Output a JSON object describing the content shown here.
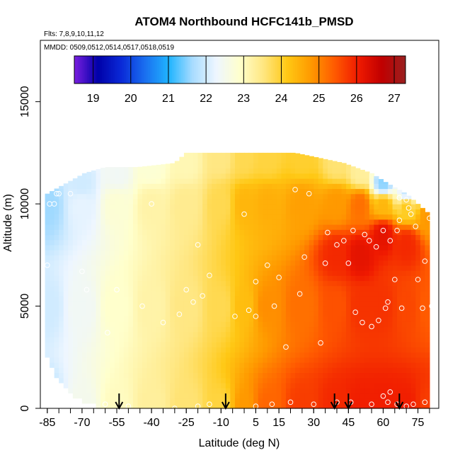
{
  "chart_data": {
    "type": "heatmap",
    "title": "ATOM4 Northbound HCFC141b_PMSD",
    "subtitle_flights": "Flts: 7,8,9,10,11,12",
    "subtitle_dates": "MMDD: 0509,0512,0514,0517,0518,0519",
    "xlabel": "Latitude (deg N)",
    "ylabel": "Altitude (m)",
    "xlim": [
      -88,
      84
    ],
    "ylim": [
      0,
      18000
    ],
    "x_ticks": [
      "-85",
      "-70",
      "-55",
      "-40",
      "-25",
      "-10",
      "5",
      "15",
      "30",
      "45",
      "60",
      "75"
    ],
    "x_tick_values": [
      -85,
      -70,
      -55,
      -40,
      -25,
      -10,
      5,
      15,
      30,
      45,
      60,
      75
    ],
    "y_ticks": [
      "0",
      "5000",
      "10000",
      "15000"
    ],
    "y_tick_values": [
      0,
      5000,
      10000,
      15000
    ],
    "colorbar": {
      "min": 18.5,
      "max": 27.3,
      "labels": [
        "19",
        "20",
        "21",
        "22",
        "23",
        "24",
        "25",
        "26",
        "27"
      ],
      "values": [
        19,
        20,
        21,
        22,
        23,
        24,
        25,
        26,
        27
      ],
      "colors": [
        "#7a1fe0",
        "#0000a8",
        "#0a2ad8",
        "#1a70f0",
        "#20b4ff",
        "#a8dcff",
        "#eef6ff",
        "#ffffcc",
        "#ffe680",
        "#ffc814",
        "#ff9a00",
        "#ff5a00",
        "#f01a00",
        "#c00000",
        "#9a2020"
      ]
    },
    "arrows_lat": [
      -54,
      -8,
      39,
      45,
      67
    ],
    "field": {
      "top_altitude_by_lat": [
        [
          -85,
          10500
        ],
        [
          -77,
          11000
        ],
        [
          -69,
          11500
        ],
        [
          -60,
          11800
        ],
        [
          -46,
          11800
        ],
        [
          -30,
          12000
        ],
        [
          -25,
          12500
        ],
        [
          22,
          12500
        ],
        [
          43,
          12000
        ],
        [
          55,
          11500
        ],
        [
          62,
          11000
        ],
        [
          70,
          10500
        ],
        [
          75,
          10000
        ],
        [
          80,
          9500
        ]
      ],
      "left_bottom_altitude_by_lat": [
        [
          -85,
          2500
        ],
        [
          -80,
          1500
        ],
        [
          -75,
          800
        ],
        [
          -68,
          400
        ],
        [
          -60,
          0
        ]
      ],
      "left_edge_lat": -86,
      "right_edge_lat": 80,
      "anchor_values": [
        [
          -85,
          0,
          21.8
        ],
        [
          -85,
          5000,
          22.0
        ],
        [
          -85,
          10000,
          21.6
        ],
        [
          -70,
          0,
          22.5
        ],
        [
          -70,
          5000,
          22.4
        ],
        [
          -70,
          10000,
          22.2
        ],
        [
          -70,
          11000,
          22.0
        ],
        [
          -55,
          0,
          23.0
        ],
        [
          -55,
          5000,
          22.9
        ],
        [
          -55,
          10000,
          22.8
        ],
        [
          -55,
          11500,
          22.4
        ],
        [
          -40,
          0,
          23.3
        ],
        [
          -40,
          5000,
          23.2
        ],
        [
          -40,
          10000,
          23.2
        ],
        [
          -40,
          11800,
          22.8
        ],
        [
          -25,
          0,
          23.6
        ],
        [
          -25,
          5000,
          23.5
        ],
        [
          -25,
          10000,
          23.4
        ],
        [
          -25,
          12000,
          23.1
        ],
        [
          -10,
          0,
          23.9
        ],
        [
          -10,
          5000,
          23.8
        ],
        [
          -10,
          10000,
          23.8
        ],
        [
          -10,
          12300,
          23.5
        ],
        [
          0,
          0,
          24.8
        ],
        [
          0,
          5000,
          24.3
        ],
        [
          0,
          10000,
          24.4
        ],
        [
          0,
          12300,
          23.8
        ],
        [
          10,
          0,
          25.3
        ],
        [
          10,
          5000,
          24.9
        ],
        [
          10,
          10000,
          24.5
        ],
        [
          10,
          12300,
          23.9
        ],
        [
          25,
          0,
          25.7
        ],
        [
          25,
          5000,
          25.2
        ],
        [
          25,
          10000,
          24.7
        ],
        [
          25,
          12300,
          24.0
        ],
        [
          40,
          0,
          25.9
        ],
        [
          40,
          5000,
          25.5
        ],
        [
          40,
          7500,
          25.9
        ],
        [
          40,
          10000,
          24.8
        ],
        [
          40,
          12000,
          23.6
        ],
        [
          50,
          0,
          26.0
        ],
        [
          50,
          5000,
          25.8
        ],
        [
          50,
          7500,
          26.2
        ],
        [
          50,
          10000,
          25.2
        ],
        [
          50,
          11500,
          23.3
        ],
        [
          60,
          0,
          26.0
        ],
        [
          60,
          5000,
          25.8
        ],
        [
          60,
          8500,
          26.2
        ],
        [
          60,
          10000,
          24.4
        ],
        [
          60,
          11000,
          21.5
        ],
        [
          70,
          0,
          26.0
        ],
        [
          70,
          5000,
          25.6
        ],
        [
          70,
          8000,
          25.9
        ],
        [
          70,
          10000,
          24.2
        ],
        [
          70,
          10500,
          21.8
        ],
        [
          80,
          0,
          25.7
        ],
        [
          80,
          5000,
          25.4
        ],
        [
          80,
          9500,
          24.8
        ]
      ]
    },
    "points": [
      [
        -85,
        7000
      ],
      [
        -84,
        10000
      ],
      [
        -82,
        10000
      ],
      [
        -81,
        10500
      ],
      [
        -80,
        10500
      ],
      [
        -77,
        11300
      ],
      [
        -75,
        10500
      ],
      [
        -70,
        6700
      ],
      [
        -68,
        5800
      ],
      [
        -59,
        3700
      ],
      [
        -55,
        5800
      ],
      [
        -44,
        5000
      ],
      [
        -40,
        10000
      ],
      [
        -35,
        4200
      ],
      [
        -28,
        4600
      ],
      [
        -25,
        5800
      ],
      [
        -22,
        5200
      ],
      [
        -20,
        8000
      ],
      [
        -18,
        5500
      ],
      [
        -15,
        6500
      ],
      [
        -4,
        4500
      ],
      [
        0,
        9500
      ],
      [
        2,
        4800
      ],
      [
        5,
        4500
      ],
      [
        5,
        6200
      ],
      [
        10,
        7000
      ],
      [
        13,
        5000
      ],
      [
        15,
        6400
      ],
      [
        18,
        3000
      ],
      [
        22,
        10700
      ],
      [
        24,
        5600
      ],
      [
        26,
        7400
      ],
      [
        28,
        10500
      ],
      [
        33,
        3200
      ],
      [
        35,
        7100
      ],
      [
        36,
        8600
      ],
      [
        40,
        8000
      ],
      [
        43,
        8200
      ],
      [
        45,
        7100
      ],
      [
        47,
        8700
      ],
      [
        48,
        4700
      ],
      [
        51,
        4200
      ],
      [
        52,
        8500
      ],
      [
        54,
        8200
      ],
      [
        55,
        4000
      ],
      [
        57,
        7900
      ],
      [
        58,
        4300
      ],
      [
        60,
        8700
      ],
      [
        61,
        4900
      ],
      [
        62,
        5200
      ],
      [
        63,
        8200
      ],
      [
        65,
        6300
      ],
      [
        66,
        8700
      ],
      [
        67,
        9200
      ],
      [
        67,
        10300
      ],
      [
        68,
        4900
      ],
      [
        70,
        10200
      ],
      [
        71,
        9800
      ],
      [
        72,
        9500
      ],
      [
        74,
        8900
      ],
      [
        75,
        6300
      ],
      [
        77,
        4900
      ],
      [
        78,
        7200
      ],
      [
        80,
        9300
      ],
      [
        81,
        5000
      ],
      [
        -60,
        200
      ],
      [
        -50,
        100
      ],
      [
        -30,
        0
      ],
      [
        -20,
        100
      ],
      [
        -15,
        200
      ],
      [
        5,
        100
      ],
      [
        12,
        200
      ],
      [
        20,
        300
      ],
      [
        30,
        200
      ],
      [
        40,
        300
      ],
      [
        46,
        300
      ],
      [
        55,
        200
      ],
      [
        62,
        300
      ],
      [
        66,
        200
      ],
      [
        70,
        100
      ],
      [
        73,
        200
      ],
      [
        78,
        300
      ],
      [
        60,
        600
      ],
      [
        63,
        800
      ]
    ]
  }
}
